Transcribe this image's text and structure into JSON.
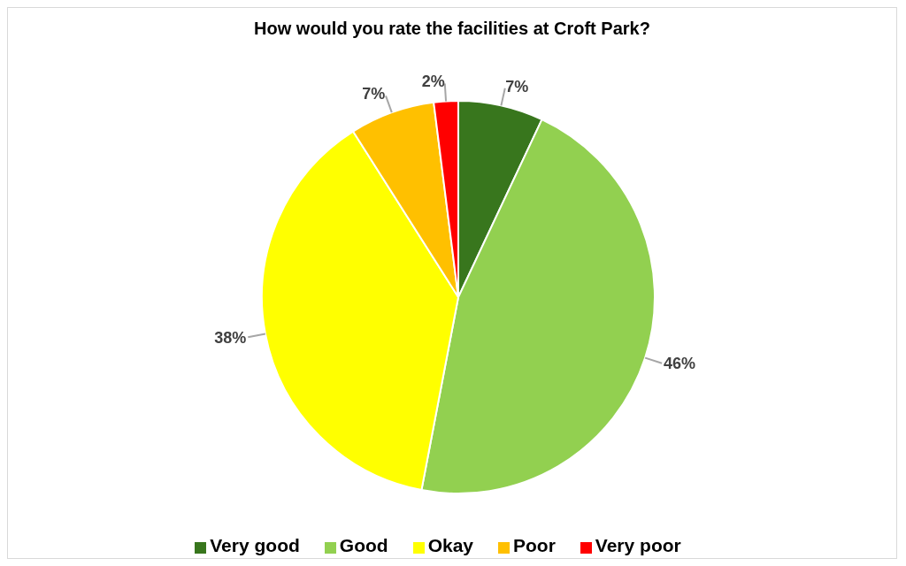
{
  "chart_data": {
    "type": "pie",
    "title": "How would you rate the facilities at Croft Park?",
    "categories": [
      "Very good",
      "Good",
      "Okay",
      "Poor",
      "Very poor"
    ],
    "values": [
      7,
      46,
      38,
      7,
      2
    ],
    "value_labels": [
      "7%",
      "46%",
      "38%",
      "7%",
      "2%"
    ],
    "colors": [
      "#38761d",
      "#92d050",
      "#ffff00",
      "#ffc000",
      "#ff0000"
    ],
    "legend": "bottom"
  }
}
